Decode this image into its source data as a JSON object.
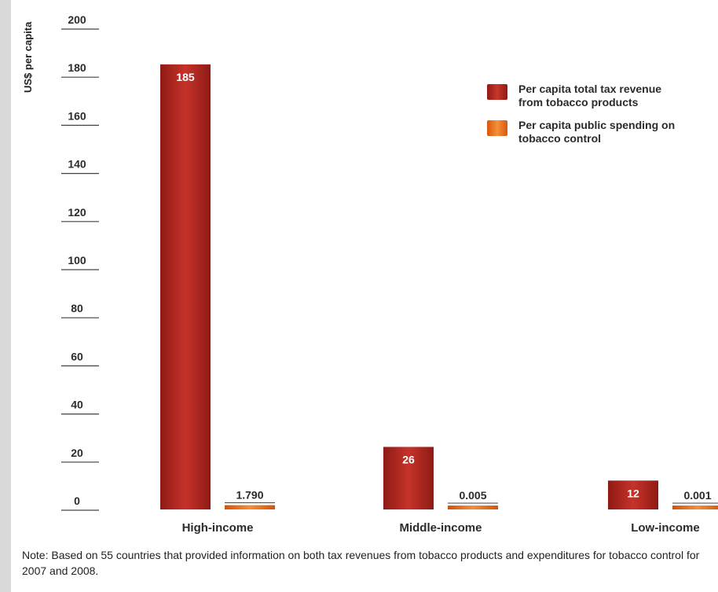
{
  "chart_data": {
    "type": "bar",
    "ylabel": "US$ per capita",
    "ylim": [
      0,
      200
    ],
    "yticks": [
      0,
      20,
      40,
      60,
      80,
      100,
      120,
      140,
      160,
      180,
      200
    ],
    "categories": [
      "High-income",
      "Middle-income",
      "Low-income"
    ],
    "series": [
      {
        "name": "Per capita total tax revenue from tobacco products",
        "values": [
          185,
          26,
          12
        ],
        "labels": [
          "185",
          "26",
          "12"
        ],
        "color": "#b8261f"
      },
      {
        "name": "Per capita public spending on tobacco control",
        "values": [
          1.79,
          0.005,
          0.001
        ],
        "labels": [
          "1.790",
          "0.005",
          "0.001"
        ],
        "color": "#e8731c"
      }
    ],
    "legend_position": "top-right",
    "grid": false
  },
  "note": "Note: Based on 55 countries that provided information on both tax revenues from tobacco products and expenditures for tobacco control for 2007 and 2008."
}
